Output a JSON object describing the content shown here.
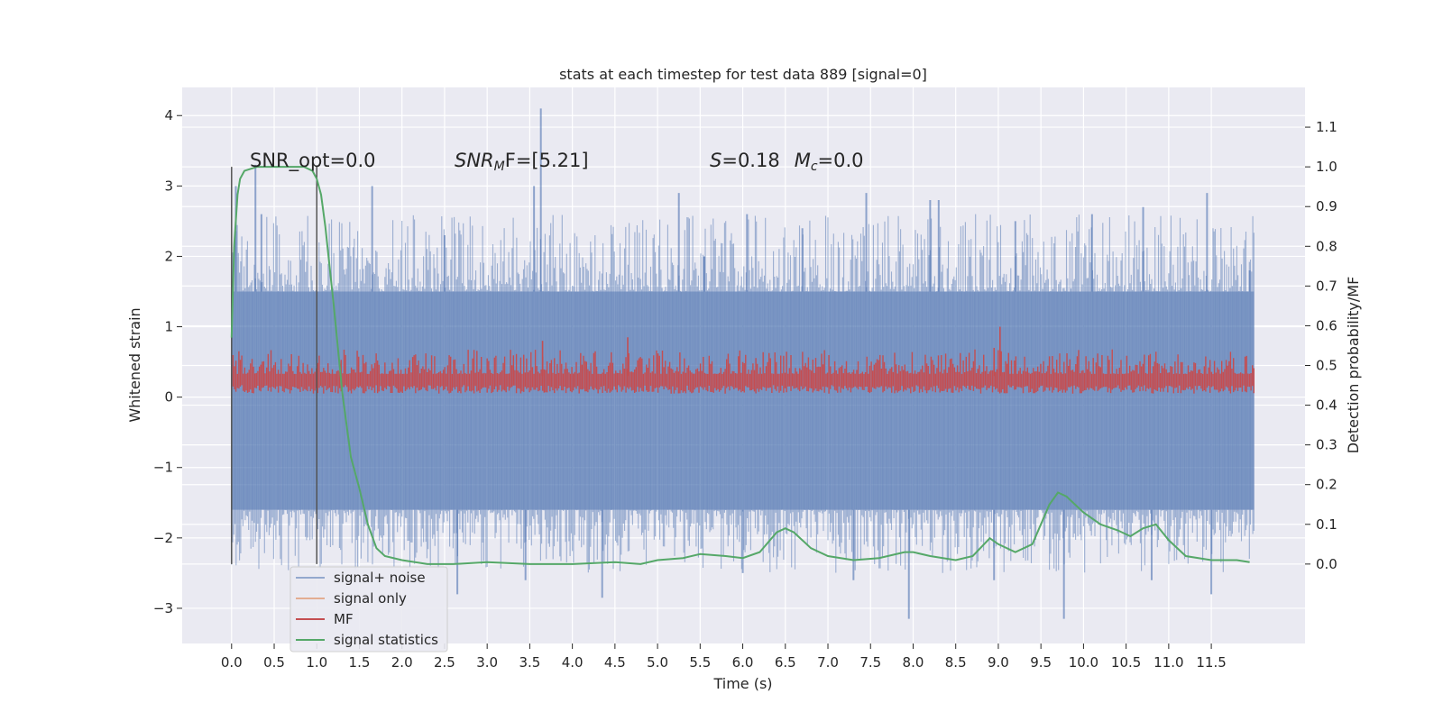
{
  "chart_data": {
    "type": "line",
    "title": "stats at each timestep for test data 889 [signal=0]",
    "xlabel": "Time (s)",
    "ylabel": "Whitened strain",
    "y2label": "Detection probability/MF",
    "xlim": [
      -0.58,
      12.6
    ],
    "ylim": [
      -3.5,
      4.4
    ],
    "y2lim": [
      -0.2,
      1.2
    ],
    "grid": true,
    "legend_position": "lower-left",
    "x_ticks": [
      "0.0",
      "0.5",
      "1.0",
      "1.5",
      "2.0",
      "2.5",
      "3.0",
      "3.5",
      "4.0",
      "4.5",
      "5.0",
      "5.5",
      "6.0",
      "6.5",
      "7.0",
      "7.5",
      "8.0",
      "8.5",
      "9.0",
      "9.5",
      "10.0",
      "10.5",
      "11.0",
      "11.5"
    ],
    "y_ticks": [
      "4",
      "3",
      "2",
      "1",
      "0",
      "−1",
      "−2",
      "−3"
    ],
    "y2_ticks": [
      "1.1",
      "1.0",
      "0.9",
      "0.8",
      "0.7",
      "0.6",
      "0.5",
      "0.4",
      "0.3",
      "0.2",
      "0.1",
      "0.0"
    ],
    "annotations": {
      "snr_opt": "SNR_opt=0.0",
      "snr_mf_base": "SNR",
      "snr_mf_sub": "M",
      "snr_mf_rest": "F=[5.21]",
      "s_label": "S",
      "s_value": "=0.18",
      "mc_label": "M",
      "mc_sub": "c",
      "mc_value": "=0.0"
    },
    "vertical_markers": [
      0.0,
      1.0
    ],
    "series": [
      {
        "name": "signal+ noise",
        "color": "#4c72b0",
        "opacity": 0.5,
        "kind": "noise",
        "x_range": [
          0.0,
          12.0
        ],
        "baseline_high": 1.5,
        "baseline_low": -1.6,
        "spikes": [
          [
            0.05,
            3.0
          ],
          [
            0.28,
            3.3
          ],
          [
            0.35,
            2.6
          ],
          [
            1.65,
            3.0
          ],
          [
            3.63,
            4.1
          ],
          [
            3.55,
            3.0
          ],
          [
            2.5,
            2.3
          ],
          [
            5.25,
            2.9
          ],
          [
            5.55,
            2.0
          ],
          [
            6.05,
            2.6
          ],
          [
            6.7,
            2.4
          ],
          [
            7.45,
            2.9
          ],
          [
            8.2,
            2.8
          ],
          [
            8.3,
            2.8
          ],
          [
            9.2,
            2.5
          ],
          [
            10.1,
            2.6
          ],
          [
            10.7,
            2.7
          ],
          [
            11.45,
            2.9
          ],
          [
            11.95,
            1.8
          ]
        ],
        "neg_spikes": [
          [
            2.65,
            -2.8
          ],
          [
            4.35,
            -2.85
          ],
          [
            7.95,
            -3.15
          ],
          [
            9.77,
            -3.15
          ],
          [
            11.5,
            -2.8
          ],
          [
            3.45,
            -2.6
          ],
          [
            6.0,
            -2.5
          ],
          [
            7.3,
            -2.6
          ],
          [
            8.95,
            -2.6
          ],
          [
            10.8,
            -2.6
          ]
        ]
      },
      {
        "name": "signal only",
        "color": "#dd8452",
        "values": []
      },
      {
        "name": "MF",
        "color": "#c44e52",
        "kind": "mf",
        "x_range": [
          0.0,
          12.0
        ],
        "baseline": 0.25,
        "band": [
          0.0,
          0.5
        ],
        "spikes": [
          [
            9.02,
            1.0
          ],
          [
            4.65,
            0.85
          ],
          [
            3.65,
            0.8
          ],
          [
            8.95,
            0.7
          ]
        ]
      },
      {
        "name": "signal statistics",
        "color": "#55a868",
        "axis": "y2",
        "x": [
          0.0,
          0.03,
          0.07,
          0.1,
          0.15,
          0.3,
          0.5,
          0.7,
          0.85,
          0.95,
          1.0,
          1.05,
          1.1,
          1.2,
          1.3,
          1.4,
          1.5,
          1.6,
          1.7,
          1.8,
          2.0,
          2.3,
          2.6,
          3.0,
          3.5,
          4.0,
          4.5,
          4.8,
          5.0,
          5.3,
          5.5,
          5.8,
          6.0,
          6.2,
          6.4,
          6.5,
          6.6,
          6.8,
          7.0,
          7.3,
          7.6,
          7.9,
          8.0,
          8.2,
          8.5,
          8.7,
          8.9,
          9.0,
          9.2,
          9.4,
          9.6,
          9.7,
          9.8,
          10.0,
          10.2,
          10.4,
          10.55,
          10.7,
          10.85,
          11.0,
          11.2,
          11.5,
          11.8,
          11.95
        ],
        "y": [
          0.57,
          0.8,
          0.93,
          0.97,
          0.99,
          1.0,
          1.0,
          1.0,
          1.0,
          0.99,
          0.97,
          0.93,
          0.85,
          0.65,
          0.43,
          0.27,
          0.19,
          0.1,
          0.04,
          0.02,
          0.01,
          0.0,
          0.0,
          0.005,
          0.0,
          0.0,
          0.005,
          0.0,
          0.01,
          0.015,
          0.025,
          0.02,
          0.015,
          0.03,
          0.08,
          0.09,
          0.08,
          0.04,
          0.02,
          0.01,
          0.015,
          0.03,
          0.03,
          0.02,
          0.01,
          0.02,
          0.065,
          0.05,
          0.03,
          0.05,
          0.15,
          0.18,
          0.17,
          0.13,
          0.1,
          0.085,
          0.07,
          0.09,
          0.1,
          0.06,
          0.02,
          0.01,
          0.01,
          0.005
        ]
      }
    ]
  }
}
